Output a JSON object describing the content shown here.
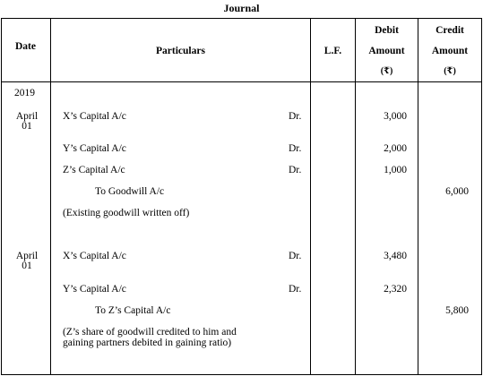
{
  "title": "Journal",
  "headers": {
    "date": "Date",
    "particulars": "Particulars",
    "lf": "L.F.",
    "debit": [
      "Debit",
      "Amount",
      "(₹)"
    ],
    "credit": [
      "Credit",
      "Amount",
      "(₹)"
    ]
  },
  "year": "2019",
  "entries": [
    {
      "date": [
        "April",
        "01"
      ],
      "lines": [
        {
          "text": "X’s Capital A/c",
          "dr": "Dr.",
          "debit": "3,000",
          "credit": ""
        },
        {
          "text": "Y’s Capital A/c",
          "dr": "Dr.",
          "debit": "2,000",
          "credit": ""
        },
        {
          "text": "Z’s Capital A/c",
          "dr": "Dr.",
          "debit": "1,000",
          "credit": ""
        },
        {
          "text": "To Goodwill A/c",
          "dr": "",
          "debit": "",
          "credit": "6,000"
        }
      ],
      "narration": [
        "(Existing goodwill written off)"
      ]
    },
    {
      "date": [
        "April",
        "01"
      ],
      "lines": [
        {
          "text": "X’s Capital A/c",
          "dr": "Dr.",
          "debit": "3,480",
          "credit": ""
        },
        {
          "text": "Y’s Capital A/c",
          "dr": "Dr.",
          "debit": "2,320",
          "credit": ""
        },
        {
          "text": "To Z’s Capital A/c",
          "dr": "",
          "debit": "",
          "credit": "5,800"
        }
      ],
      "narration": [
        "(Z’s share of goodwill credited to him and",
        "gaining partners debited in gaining ratio)"
      ]
    }
  ]
}
